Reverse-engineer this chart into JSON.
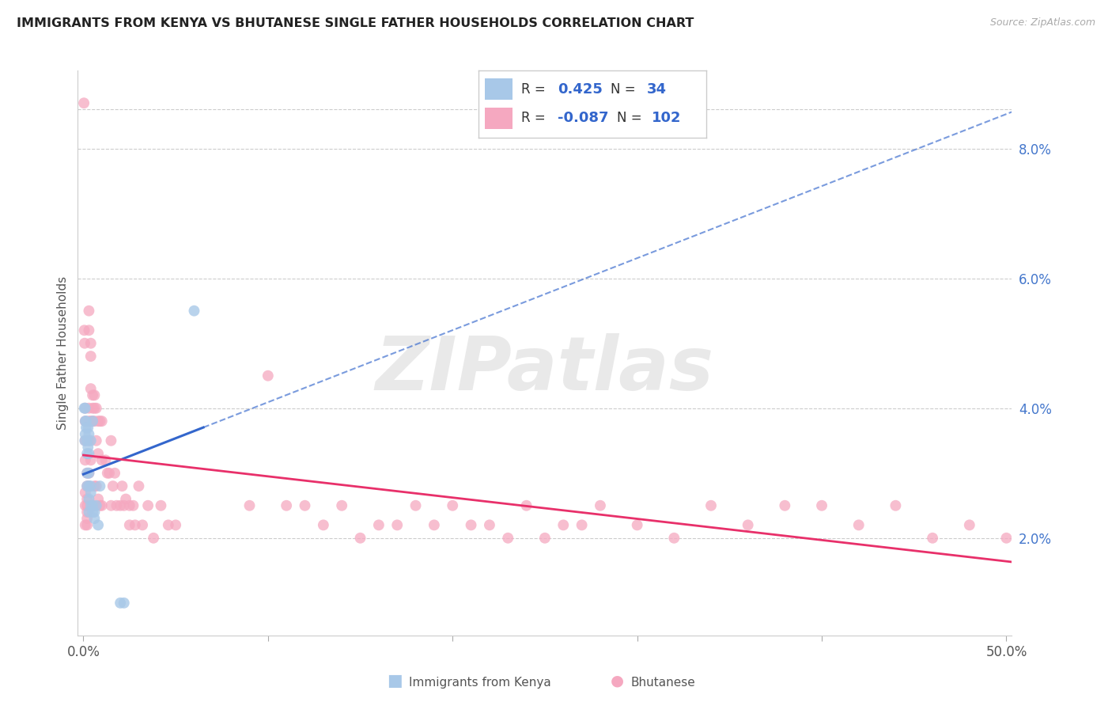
{
  "title": "IMMIGRANTS FROM KENYA VS BHUTANESE SINGLE FATHER HOUSEHOLDS CORRELATION CHART",
  "source": "Source: ZipAtlas.com",
  "ylabel": "Single Father Households",
  "xlim": [
    -0.003,
    0.503
  ],
  "ylim": [
    0.005,
    0.092
  ],
  "xticks": [
    0.0,
    0.1,
    0.2,
    0.3,
    0.4,
    0.5
  ],
  "xtick_labels": [
    "0.0%",
    "",
    "",
    "",
    "",
    "50.0%"
  ],
  "ytick_vals": [
    0.02,
    0.04,
    0.06,
    0.08
  ],
  "ytick_labels": [
    "2.0%",
    "4.0%",
    "6.0%",
    "8.0%"
  ],
  "legend_kenya_r": "0.425",
  "legend_kenya_n": "34",
  "legend_bhutan_r": "-0.087",
  "legend_bhutan_n": "102",
  "blue_scatter": "#A8C8E8",
  "pink_scatter": "#F5A8C0",
  "trend_blue": "#3366CC",
  "trend_pink": "#E8306A",
  "watermark": "ZIPatlas",
  "kenya_x": [
    0.0005,
    0.0008,
    0.001,
    0.001,
    0.001,
    0.0015,
    0.0015,
    0.002,
    0.002,
    0.002,
    0.002,
    0.0025,
    0.0025,
    0.003,
    0.003,
    0.003,
    0.003,
    0.003,
    0.003,
    0.004,
    0.004,
    0.004,
    0.004,
    0.005,
    0.005,
    0.005,
    0.006,
    0.006,
    0.007,
    0.008,
    0.009,
    0.02,
    0.022,
    0.06
  ],
  "kenya_y": [
    0.04,
    0.035,
    0.038,
    0.04,
    0.036,
    0.038,
    0.037,
    0.035,
    0.033,
    0.03,
    0.028,
    0.037,
    0.034,
    0.036,
    0.033,
    0.03,
    0.028,
    0.026,
    0.024,
    0.028,
    0.027,
    0.025,
    0.035,
    0.025,
    0.024,
    0.038,
    0.024,
    0.023,
    0.025,
    0.022,
    0.028,
    0.01,
    0.01,
    0.055
  ],
  "bhutan_x": [
    0.0003,
    0.0005,
    0.0007,
    0.001,
    0.001,
    0.001,
    0.001,
    0.001,
    0.001,
    0.001,
    0.002,
    0.002,
    0.002,
    0.002,
    0.002,
    0.002,
    0.002,
    0.003,
    0.003,
    0.003,
    0.003,
    0.003,
    0.003,
    0.003,
    0.004,
    0.004,
    0.004,
    0.004,
    0.004,
    0.005,
    0.005,
    0.005,
    0.005,
    0.006,
    0.006,
    0.006,
    0.006,
    0.007,
    0.007,
    0.007,
    0.008,
    0.008,
    0.008,
    0.009,
    0.009,
    0.01,
    0.01,
    0.01,
    0.012,
    0.013,
    0.014,
    0.015,
    0.015,
    0.016,
    0.017,
    0.018,
    0.02,
    0.021,
    0.022,
    0.023,
    0.025,
    0.025,
    0.027,
    0.028,
    0.03,
    0.032,
    0.035,
    0.038,
    0.042,
    0.046,
    0.05,
    0.09,
    0.1,
    0.12,
    0.14,
    0.16,
    0.18,
    0.2,
    0.22,
    0.24,
    0.26,
    0.28,
    0.3,
    0.32,
    0.34,
    0.36,
    0.38,
    0.4,
    0.42,
    0.44,
    0.46,
    0.48,
    0.5,
    0.11,
    0.13,
    0.15,
    0.17,
    0.19,
    0.21,
    0.23,
    0.25,
    0.27
  ],
  "bhutan_y": [
    0.087,
    0.052,
    0.05,
    0.04,
    0.038,
    0.035,
    0.032,
    0.027,
    0.025,
    0.022,
    0.03,
    0.028,
    0.026,
    0.025,
    0.024,
    0.023,
    0.022,
    0.055,
    0.052,
    0.04,
    0.038,
    0.035,
    0.03,
    0.028,
    0.05,
    0.048,
    0.043,
    0.038,
    0.032,
    0.042,
    0.04,
    0.038,
    0.025,
    0.042,
    0.04,
    0.038,
    0.028,
    0.04,
    0.035,
    0.028,
    0.038,
    0.033,
    0.026,
    0.038,
    0.025,
    0.038,
    0.032,
    0.025,
    0.032,
    0.03,
    0.03,
    0.035,
    0.025,
    0.028,
    0.03,
    0.025,
    0.025,
    0.028,
    0.025,
    0.026,
    0.025,
    0.022,
    0.025,
    0.022,
    0.028,
    0.022,
    0.025,
    0.02,
    0.025,
    0.022,
    0.022,
    0.025,
    0.045,
    0.025,
    0.025,
    0.022,
    0.025,
    0.025,
    0.022,
    0.025,
    0.022,
    0.025,
    0.022,
    0.02,
    0.025,
    0.022,
    0.025,
    0.025,
    0.022,
    0.025,
    0.02,
    0.022,
    0.02,
    0.025,
    0.022,
    0.02,
    0.022,
    0.022,
    0.022,
    0.02,
    0.02,
    0.022
  ]
}
